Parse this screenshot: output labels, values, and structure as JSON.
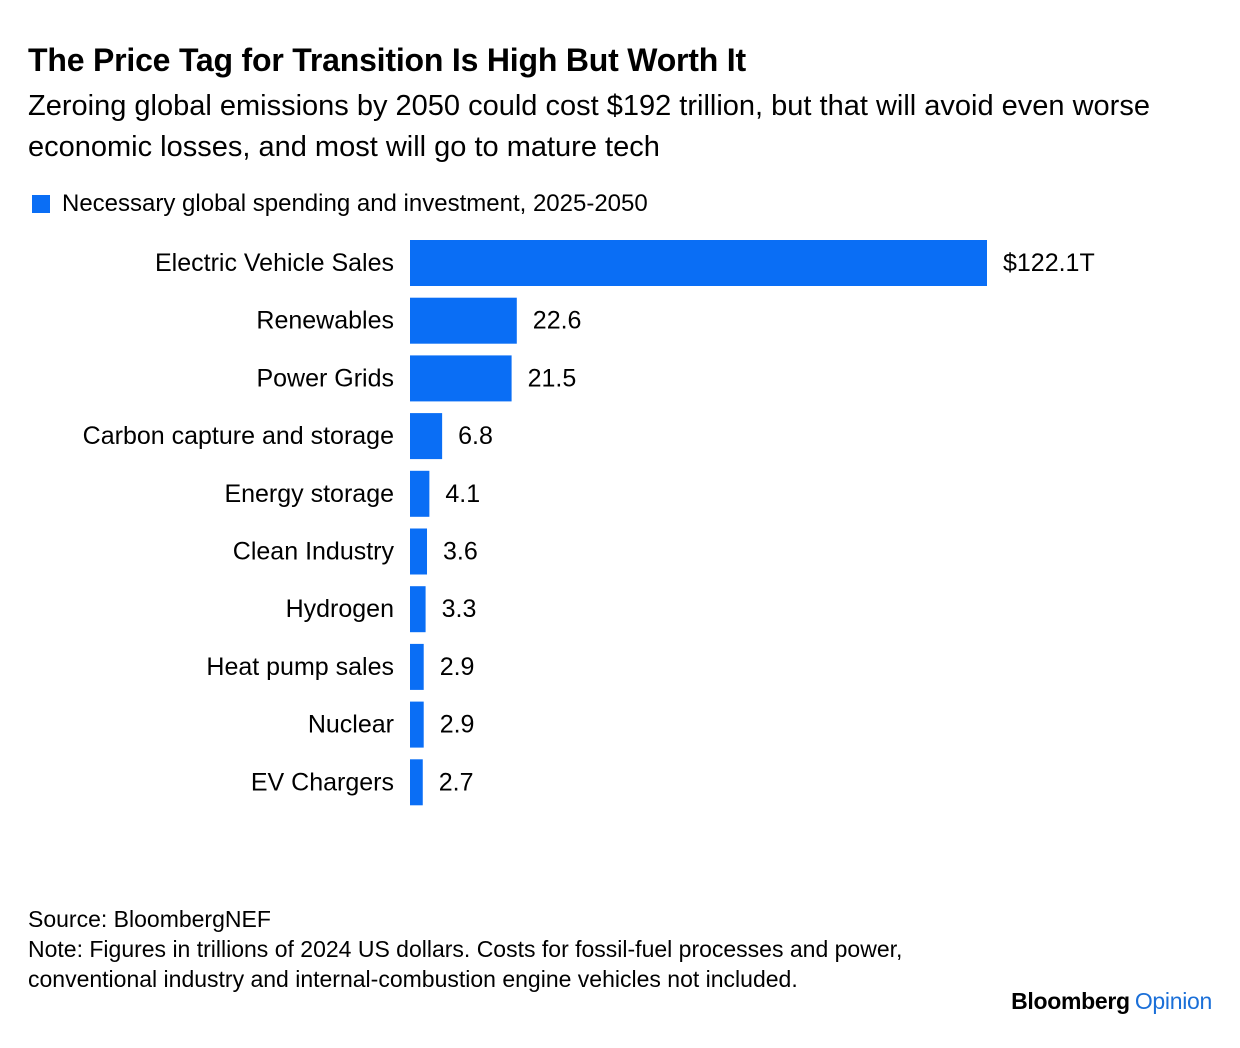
{
  "header": {
    "title": "The Price Tag for Transition Is High But Worth It",
    "subtitle": "Zeroing global emissions by 2050 could cost $192 trillion, but that will avoid even worse economic losses, and most will go to mature tech"
  },
  "legend": {
    "label": "Necessary global spending and investment, 2025-2050"
  },
  "colors": {
    "bar": "#0a6ef5",
    "brand_accent": "#1a6fd8"
  },
  "chart_data": {
    "type": "bar",
    "orientation": "horizontal",
    "categories": [
      "Electric Vehicle Sales",
      "Renewables",
      "Power Grids",
      "Carbon capture and storage",
      "Energy storage",
      "Clean Industry",
      "Hydrogen",
      "Heat pump sales",
      "Nuclear",
      "EV Chargers"
    ],
    "series": [
      {
        "name": "Necessary global spending and investment, 2025-2050",
        "values": [
          122.1,
          22.6,
          21.5,
          6.8,
          4.1,
          3.6,
          3.3,
          2.9,
          2.9,
          2.7
        ]
      }
    ],
    "value_labels": [
      "$122.1T",
      "22.6",
      "21.5",
      "6.8",
      "4.1",
      "3.6",
      "3.3",
      "2.9",
      "2.9",
      "2.7"
    ],
    "title": "The Price Tag for Transition Is High But Worth It",
    "xlim": [
      0,
      122.1
    ],
    "grid": false,
    "legend_position": "top-left"
  },
  "footer": {
    "source": "Source: BloombergNEF",
    "note": "Note: Figures in trillions of 2024 US dollars. Costs for fossil-fuel processes and power, conventional industry and internal-combustion engine vehicles not included."
  },
  "brand": {
    "name": "Bloomberg",
    "accent": "Opinion"
  }
}
